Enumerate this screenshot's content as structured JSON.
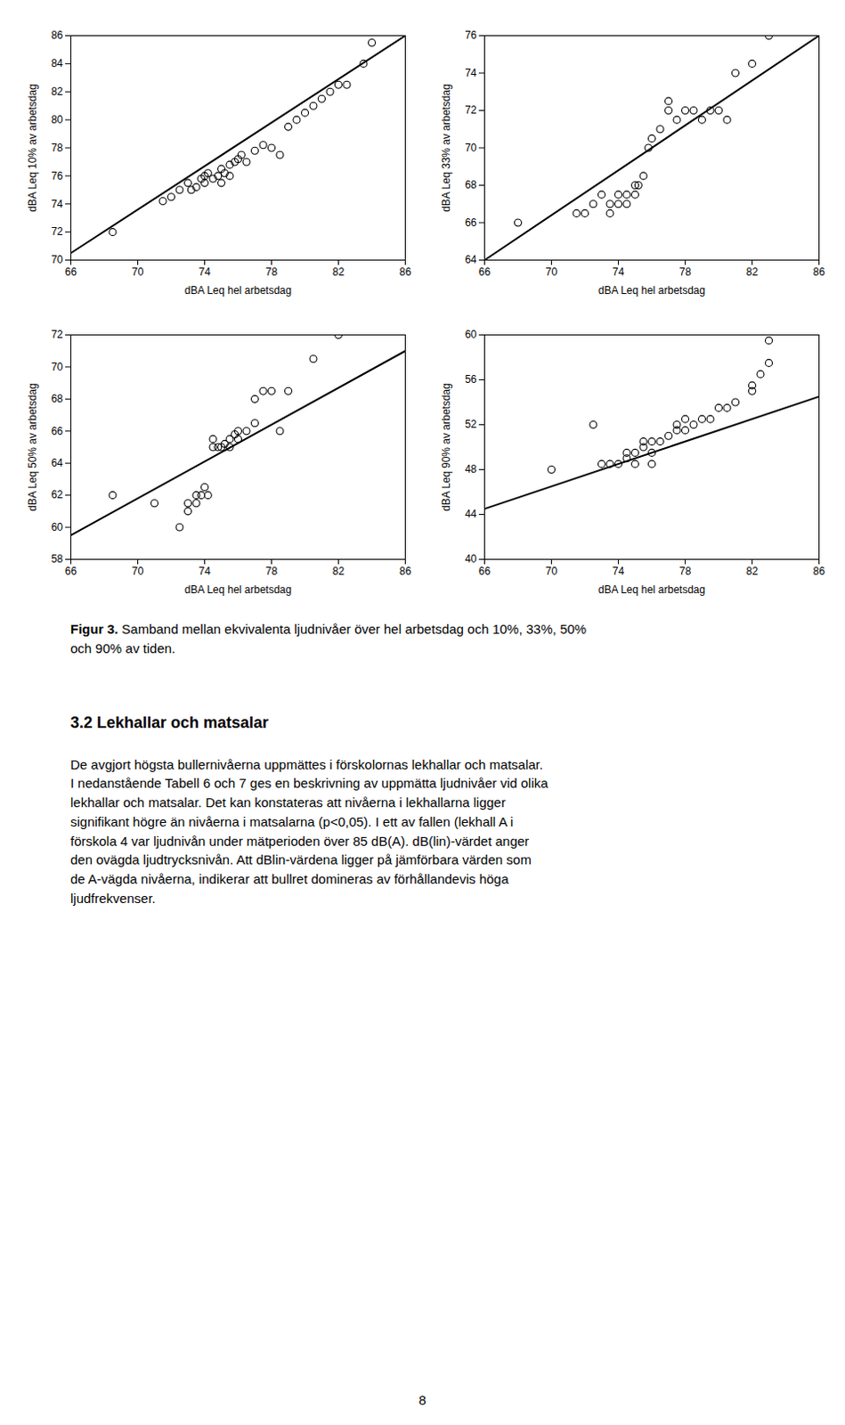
{
  "chart_data": [
    {
      "type": "scatter",
      "x_label": "dBA Leq hel arbetsdag",
      "y_label": "dBA Leq 10% av arbetsdag",
      "xlim": [
        66,
        86
      ],
      "ylim": [
        70,
        86
      ],
      "xticks": [
        66,
        70,
        74,
        78,
        82,
        86
      ],
      "yticks": [
        70,
        72,
        74,
        76,
        78,
        80,
        82,
        84,
        86
      ],
      "series": [
        {
          "type": "scatter",
          "color": "#000000",
          "marker": "hollow",
          "x": [
            68.5,
            71.5,
            72.0,
            72.5,
            73.0,
            73.2,
            73.5,
            73.8,
            74.0,
            74.0,
            74.2,
            74.5,
            74.8,
            75.0,
            75.0,
            75.2,
            75.5,
            75.5,
            75.8,
            76.0,
            76.2,
            76.5,
            77.0,
            77.5,
            78.0,
            78.5,
            79.0,
            79.5,
            80.0,
            80.5,
            81.0,
            81.5,
            82.0,
            82.5,
            83.5,
            84.0
          ],
          "values": [
            72.0,
            74.2,
            74.5,
            75.0,
            75.5,
            75.0,
            75.2,
            75.8,
            75.5,
            76.0,
            76.2,
            75.8,
            76.0,
            75.5,
            76.5,
            76.2,
            76.0,
            76.8,
            77.0,
            77.2,
            77.5,
            77.0,
            77.8,
            78.2,
            78.0,
            77.5,
            79.5,
            80.0,
            80.5,
            81.0,
            81.5,
            82.0,
            82.5,
            82.5,
            84.0,
            85.5
          ]
        },
        {
          "type": "line",
          "color": "#000000",
          "x": [
            66,
            86
          ],
          "values": [
            70.5,
            86.0
          ]
        }
      ]
    },
    {
      "type": "scatter",
      "x_label": "dBA Leq hel arbetsdag",
      "y_label": "dBA Leq 33% av arbetsdag",
      "xlim": [
        66,
        86
      ],
      "ylim": [
        64,
        76
      ],
      "xticks": [
        66,
        70,
        74,
        78,
        82,
        86
      ],
      "yticks": [
        64,
        66,
        68,
        70,
        72,
        74,
        76
      ],
      "series": [
        {
          "type": "scatter",
          "color": "#000000",
          "marker": "hollow",
          "x": [
            68.0,
            71.5,
            72.0,
            72.5,
            73.0,
            73.5,
            73.5,
            74.0,
            74.0,
            74.5,
            74.5,
            75.0,
            75.0,
            75.2,
            75.5,
            75.8,
            76.0,
            76.5,
            77.0,
            77.0,
            77.5,
            78.0,
            78.5,
            79.0,
            79.5,
            80.0,
            80.5,
            81.0,
            82.0,
            83.0
          ],
          "values": [
            66.0,
            66.5,
            66.5,
            67.0,
            67.5,
            67.0,
            66.5,
            67.0,
            67.5,
            67.5,
            67.0,
            68.0,
            67.5,
            68.0,
            68.5,
            70.0,
            70.5,
            71.0,
            72.0,
            72.5,
            71.5,
            72.0,
            72.0,
            71.5,
            72.0,
            72.0,
            71.5,
            74.0,
            74.5,
            76.0
          ]
        },
        {
          "type": "line",
          "color": "#000000",
          "x": [
            66,
            86
          ],
          "values": [
            64.0,
            76.0
          ]
        }
      ]
    },
    {
      "type": "scatter",
      "x_label": "dBA Leq hel arbetsdag",
      "y_label": "dBA Leq 50% av arbetsdag",
      "xlim": [
        66,
        86
      ],
      "ylim": [
        58,
        72
      ],
      "xticks": [
        66,
        70,
        74,
        78,
        82,
        86
      ],
      "yticks": [
        58,
        60,
        62,
        64,
        66,
        68,
        70,
        72
      ],
      "series": [
        {
          "type": "scatter",
          "color": "#000000",
          "marker": "hollow",
          "x": [
            68.5,
            71.0,
            72.5,
            73.0,
            73.0,
            73.5,
            73.5,
            73.8,
            74.0,
            74.2,
            74.5,
            74.5,
            74.8,
            75.0,
            75.2,
            75.5,
            75.5,
            75.8,
            76.0,
            76.0,
            76.5,
            77.0,
            77.0,
            77.5,
            78.0,
            78.5,
            79.0,
            80.5,
            82.0
          ],
          "values": [
            62.0,
            61.5,
            60.0,
            61.0,
            61.5,
            62.0,
            61.5,
            62.0,
            62.5,
            62.0,
            65.0,
            65.5,
            65.0,
            65.0,
            65.2,
            65.5,
            65.0,
            65.8,
            66.0,
            65.5,
            66.0,
            66.5,
            68.0,
            68.5,
            68.5,
            66.0,
            68.5,
            70.5,
            72.0
          ]
        },
        {
          "type": "line",
          "color": "#000000",
          "x": [
            66,
            86
          ],
          "values": [
            59.5,
            71.0
          ]
        }
      ]
    },
    {
      "type": "scatter",
      "x_label": "dBA Leq hel arbetsdag",
      "y_label": "dBA Leq 90% av arbetsdag",
      "xlim": [
        66,
        86
      ],
      "ylim": [
        40,
        60
      ],
      "xticks": [
        66,
        70,
        74,
        78,
        82,
        86
      ],
      "yticks": [
        40,
        44,
        48,
        52,
        56,
        60
      ],
      "series": [
        {
          "type": "scatter",
          "color": "#000000",
          "marker": "hollow",
          "x": [
            70.0,
            72.5,
            73.0,
            73.5,
            74.0,
            74.5,
            74.5,
            75.0,
            75.0,
            75.5,
            75.5,
            76.0,
            76.0,
            76.0,
            76.5,
            77.0,
            77.5,
            77.5,
            78.0,
            78.0,
            78.5,
            79.0,
            79.5,
            80.0,
            80.5,
            81.0,
            82.0,
            82.0,
            82.5,
            83.0,
            83.0
          ],
          "values": [
            48.0,
            52.0,
            48.5,
            48.5,
            48.5,
            49.0,
            49.5,
            48.5,
            49.5,
            50.0,
            50.5,
            48.5,
            49.5,
            50.5,
            50.5,
            51.0,
            51.5,
            52.0,
            51.5,
            52.5,
            52.0,
            52.5,
            52.5,
            53.5,
            53.5,
            54.0,
            55.0,
            55.5,
            56.5,
            57.5,
            59.5
          ]
        },
        {
          "type": "line",
          "color": "#000000",
          "x": [
            66,
            86
          ],
          "values": [
            44.5,
            54.5
          ]
        }
      ]
    }
  ],
  "caption_bold": "Figur 3.",
  "caption": [
    "Samband mellan ekvivalenta ljudnivåer över hel arbetsdag och 10%, 33%, 50%",
    "och 90% av tiden."
  ],
  "section_title": "3.2 Lekhallar och matsalar",
  "section_text": [
    "De avgjort högsta bullernivåerna uppmättes i förskolornas lekhallar och matsalar.",
    "I nedanstående Tabell 6 och 7 ges en beskrivning av uppmätta ljudnivåer vid olika",
    "lekhallar och matsalar. Det kan konstateras att nivåerna i lekhallarna ligger",
    "signifikant högre än nivåerna i matsalarna (p<0,05). I ett av fallen (lekhall A i",
    "förskola 4 var ljudnivån under mätperioden över 85 dB(A). dB(lin)-värdet anger",
    "den ovägda ljudtrycksnivån. Att dBlin-värdena ligger på jämförbara värden som",
    "de A-vägda nivåerna, indikerar att bullret domineras av förhållandevis höga",
    "ljudfrekvenser."
  ],
  "page_number": "8"
}
